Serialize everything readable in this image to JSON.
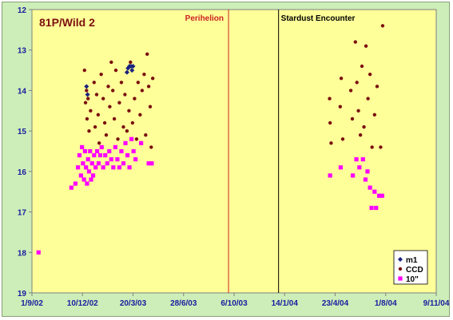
{
  "chart_data": {
    "type": "scatter",
    "title": "81P/Wild 2",
    "x_tick_labels": [
      "1/9/02",
      "10/12/02",
      "20/3/03",
      "28/6/03",
      "6/10/03",
      "14/1/04",
      "23/4/04",
      "1/8/04",
      "9/11/04"
    ],
    "y_tick_labels": [
      "12",
      "13",
      "14",
      "15",
      "16",
      "17",
      "18",
      "19"
    ],
    "xlim": [
      "2002-09-01",
      "2004-11-09"
    ],
    "ylim": [
      12,
      19
    ],
    "y_inverted": true,
    "grid": false,
    "legend_position": "bottom-right",
    "annotations": [
      {
        "text": "Perihelion",
        "x": "2003-09-25",
        "color": "#cc2222"
      },
      {
        "text": "Stardust  Encounter",
        "x": "2004-01-02",
        "color": "#000000"
      }
    ],
    "series": [
      {
        "name": "m1",
        "color": "#1a237e",
        "marker": "diamond",
        "points": [
          [
            "2002-12-18",
            13.9
          ],
          [
            "2002-12-20",
            14.1
          ],
          [
            "2003-03-08",
            13.55
          ],
          [
            "2003-03-10",
            13.45
          ],
          [
            "2003-03-13",
            13.4
          ],
          [
            "2003-03-16",
            13.4
          ],
          [
            "2003-03-18",
            13.5
          ],
          [
            "2003-03-20",
            13.4
          ]
        ]
      },
      {
        "name": "CCD",
        "color": "#7b1010",
        "marker": "circle",
        "points": [
          [
            "2002-12-14",
            13.5
          ],
          [
            "2002-12-16",
            14.3
          ],
          [
            "2002-12-18",
            14.0
          ],
          [
            "2002-12-19",
            14.7
          ],
          [
            "2002-12-21",
            14.2
          ],
          [
            "2002-12-23",
            15.0
          ],
          [
            "2002-12-26",
            14.5
          ],
          [
            "2003-01-02",
            13.8
          ],
          [
            "2003-01-04",
            14.9
          ],
          [
            "2003-01-07",
            14.1
          ],
          [
            "2003-01-10",
            14.6
          ],
          [
            "2003-01-12",
            15.3
          ],
          [
            "2003-01-16",
            13.6
          ],
          [
            "2003-01-20",
            14.2
          ],
          [
            "2003-01-23",
            14.8
          ],
          [
            "2003-01-26",
            15.1
          ],
          [
            "2003-01-30",
            13.9
          ],
          [
            "2003-02-02",
            14.4
          ],
          [
            "2003-02-05",
            13.3
          ],
          [
            "2003-02-08",
            14.0
          ],
          [
            "2003-02-11",
            14.7
          ],
          [
            "2003-02-14",
            13.5
          ],
          [
            "2003-02-18",
            15.2
          ],
          [
            "2003-02-21",
            14.3
          ],
          [
            "2003-02-25",
            13.8
          ],
          [
            "2003-03-01",
            14.9
          ],
          [
            "2003-03-04",
            14.1
          ],
          [
            "2003-03-08",
            15.0
          ],
          [
            "2003-03-12",
            14.5
          ],
          [
            "2003-03-15",
            13.3
          ],
          [
            "2003-03-19",
            14.8
          ],
          [
            "2003-03-23",
            14.2
          ],
          [
            "2003-03-27",
            15.2
          ],
          [
            "2003-03-30",
            13.8
          ],
          [
            "2003-04-03",
            14.6
          ],
          [
            "2003-04-07",
            14.0
          ],
          [
            "2003-04-11",
            13.6
          ],
          [
            "2003-04-14",
            15.1
          ],
          [
            "2003-04-17",
            13.1
          ],
          [
            "2003-04-20",
            13.9
          ],
          [
            "2003-04-23",
            14.4
          ],
          [
            "2003-04-25",
            15.4
          ],
          [
            "2003-04-28",
            13.7
          ],
          [
            "2004-04-12",
            14.2
          ],
          [
            "2004-04-13",
            14.8
          ],
          [
            "2004-04-15",
            15.3
          ],
          [
            "2004-05-03",
            14.4
          ],
          [
            "2004-05-05",
            13.7
          ],
          [
            "2004-05-08",
            15.2
          ],
          [
            "2004-05-24",
            14.0
          ],
          [
            "2004-05-27",
            14.7
          ],
          [
            "2004-06-02",
            12.8
          ],
          [
            "2004-06-05",
            13.8
          ],
          [
            "2004-06-08",
            14.5
          ],
          [
            "2004-06-12",
            15.1
          ],
          [
            "2004-06-15",
            13.4
          ],
          [
            "2004-06-19",
            14.9
          ],
          [
            "2004-06-23",
            12.9
          ],
          [
            "2004-06-27",
            14.2
          ],
          [
            "2004-07-01",
            13.6
          ],
          [
            "2004-07-05",
            15.4
          ],
          [
            "2004-07-10",
            14.6
          ],
          [
            "2004-07-15",
            13.9
          ],
          [
            "2004-07-22",
            15.4
          ],
          [
            "2004-07-26",
            12.4
          ]
        ]
      },
      {
        "name": "10\"",
        "color": "#ff00ff",
        "marker": "square",
        "points": [
          [
            "2002-09-14",
            18.0
          ],
          [
            "2002-11-18",
            16.4
          ],
          [
            "2002-11-26",
            16.3
          ],
          [
            "2002-12-01",
            15.9
          ],
          [
            "2002-12-04",
            15.6
          ],
          [
            "2002-12-07",
            16.1
          ],
          [
            "2002-12-09",
            15.4
          ],
          [
            "2002-12-11",
            15.8
          ],
          [
            "2002-12-13",
            16.2
          ],
          [
            "2002-12-15",
            15.5
          ],
          [
            "2002-12-17",
            15.9
          ],
          [
            "2002-12-19",
            16.3
          ],
          [
            "2002-12-21",
            15.7
          ],
          [
            "2002-12-23",
            16.0
          ],
          [
            "2002-12-25",
            15.5
          ],
          [
            "2002-12-27",
            16.2
          ],
          [
            "2002-12-29",
            15.8
          ],
          [
            "2002-12-31",
            16.1
          ],
          [
            "2003-01-02",
            15.6
          ],
          [
            "2003-01-05",
            15.9
          ],
          [
            "2003-01-08",
            15.5
          ],
          [
            "2003-01-11",
            15.8
          ],
          [
            "2003-01-14",
            15.6
          ],
          [
            "2003-01-17",
            15.4
          ],
          [
            "2003-01-20",
            15.9
          ],
          [
            "2003-01-24",
            15.6
          ],
          [
            "2003-01-28",
            15.8
          ],
          [
            "2003-02-01",
            15.5
          ],
          [
            "2003-02-05",
            15.7
          ],
          [
            "2003-02-09",
            15.9
          ],
          [
            "2003-02-13",
            15.4
          ],
          [
            "2003-02-17",
            15.7
          ],
          [
            "2003-02-21",
            15.9
          ],
          [
            "2003-02-25",
            15.5
          ],
          [
            "2003-03-01",
            15.8
          ],
          [
            "2003-03-05",
            15.3
          ],
          [
            "2003-03-09",
            15.6
          ],
          [
            "2003-03-13",
            15.9
          ],
          [
            "2003-03-17",
            15.2
          ],
          [
            "2003-03-21",
            15.5
          ],
          [
            "2003-03-25",
            15.7
          ],
          [
            "2003-04-05",
            15.3
          ],
          [
            "2003-04-20",
            15.8
          ],
          [
            "2003-04-26",
            15.8
          ],
          [
            "2004-04-13",
            16.1
          ],
          [
            "2004-05-04",
            15.9
          ],
          [
            "2004-05-28",
            16.1
          ],
          [
            "2004-06-04",
            15.7
          ],
          [
            "2004-06-10",
            15.9
          ],
          [
            "2004-06-17",
            15.7
          ],
          [
            "2004-06-22",
            16.2
          ],
          [
            "2004-06-26",
            16.0
          ],
          [
            "2004-07-01",
            16.4
          ],
          [
            "2004-07-04",
            16.9
          ],
          [
            "2004-07-10",
            16.5
          ],
          [
            "2004-07-13",
            16.9
          ],
          [
            "2004-07-19",
            16.6
          ],
          [
            "2004-07-25",
            16.6
          ]
        ]
      }
    ]
  }
}
